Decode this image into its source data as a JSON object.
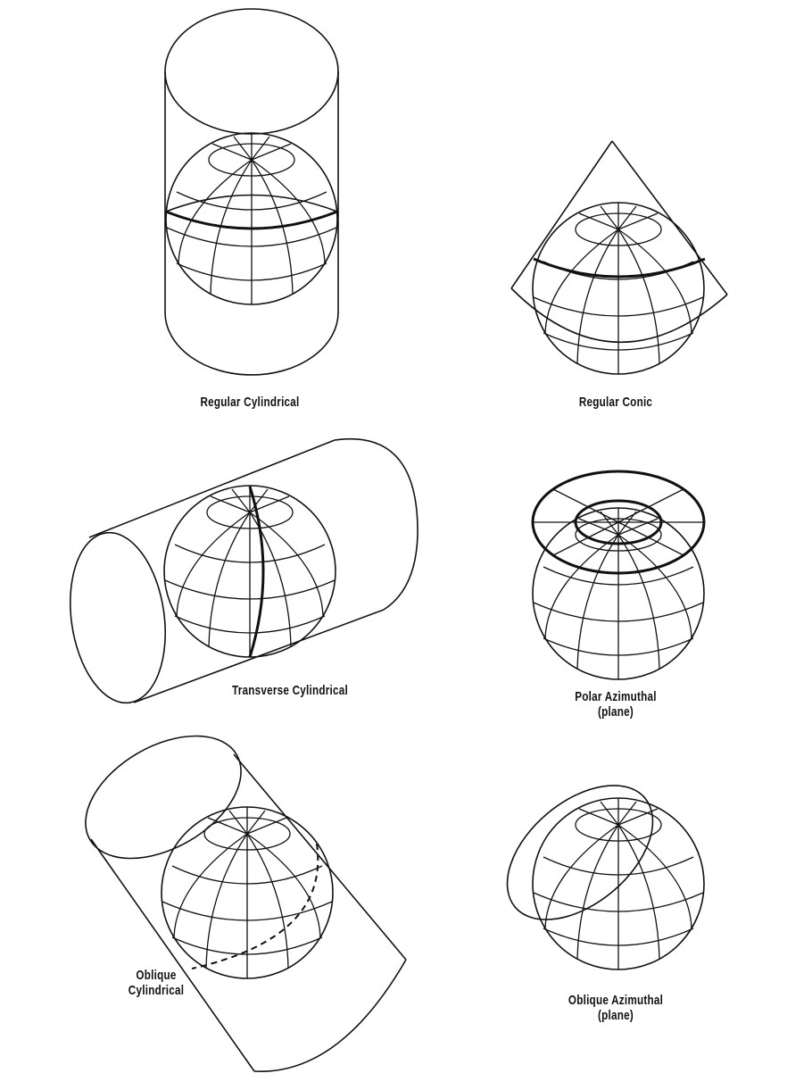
{
  "labels": {
    "regular_cylindrical": "Regular Cylindrical",
    "regular_conic": "Regular Conic",
    "transverse_cylindrical": "Transverse Cylindrical",
    "polar_azimuthal_line1": "Polar Azimuthal",
    "polar_azimuthal_line2": "(plane)",
    "oblique_cylindrical_line1": "Oblique",
    "oblique_cylindrical_line2": "Cylindrical",
    "oblique_azimuthal_line1": "Oblique Azimuthal",
    "oblique_azimuthal_line2": "(plane)"
  }
}
